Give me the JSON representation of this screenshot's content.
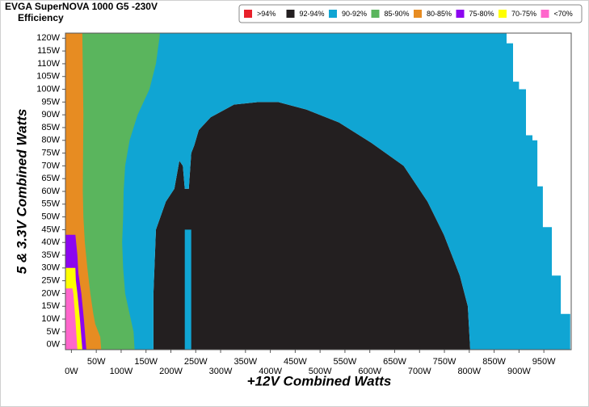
{
  "chart_data": {
    "type": "region-map",
    "title": "EVGA SuperNOVA 1000 G5 -230V",
    "subtitle": "Efficiency",
    "x_label": "+12V Combined Watts",
    "y_label": "5 & 3.3V Combined Watts",
    "xlim": [
      -12,
      1005
    ],
    "ylim": [
      -2,
      122
    ],
    "xticks": [
      {
        "value": 0,
        "label": "0W"
      },
      {
        "value": 50,
        "label": "50W"
      },
      {
        "value": 100,
        "label": "100W"
      },
      {
        "value": 150,
        "label": "150W"
      },
      {
        "value": 200,
        "label": "200W"
      },
      {
        "value": 250,
        "label": "250W"
      },
      {
        "value": 300,
        "label": "300W"
      },
      {
        "value": 350,
        "label": "350W"
      },
      {
        "value": 400,
        "label": "400W"
      },
      {
        "value": 450,
        "label": "450W"
      },
      {
        "value": 500,
        "label": "500W"
      },
      {
        "value": 550,
        "label": "550W"
      },
      {
        "value": 600,
        "label": "600W"
      },
      {
        "value": 650,
        "label": "650W"
      },
      {
        "value": 700,
        "label": "700W"
      },
      {
        "value": 750,
        "label": "750W"
      },
      {
        "value": 800,
        "label": "800W"
      },
      {
        "value": 850,
        "label": "850W"
      },
      {
        "value": 900,
        "label": "900W"
      },
      {
        "value": 950,
        "label": "950W"
      }
    ],
    "yticks": [
      {
        "value": 0,
        "label": "0W"
      },
      {
        "value": 5,
        "label": "5W"
      },
      {
        "value": 10,
        "label": "10W"
      },
      {
        "value": 15,
        "label": "15W"
      },
      {
        "value": 20,
        "label": "20W"
      },
      {
        "value": 25,
        "label": "25W"
      },
      {
        "value": 30,
        "label": "30W"
      },
      {
        "value": 35,
        "label": "35W"
      },
      {
        "value": 40,
        "label": "40W"
      },
      {
        "value": 45,
        "label": "45W"
      },
      {
        "value": 50,
        "label": "50W"
      },
      {
        "value": 55,
        "label": "55W"
      },
      {
        "value": 60,
        "label": "60W"
      },
      {
        "value": 65,
        "label": "65W"
      },
      {
        "value": 70,
        "label": "70W"
      },
      {
        "value": 75,
        "label": "75W"
      },
      {
        "value": 80,
        "label": "80W"
      },
      {
        "value": 85,
        "label": "85W"
      },
      {
        "value": 90,
        "label": "90W"
      },
      {
        "value": 95,
        "label": "95W"
      },
      {
        "value": 100,
        "label": "100W"
      },
      {
        "value": 105,
        "label": "105W"
      },
      {
        "value": 110,
        "label": "110W"
      },
      {
        "value": 115,
        "label": "115W"
      },
      {
        "value": 120,
        "label": "120W"
      }
    ],
    "legend": "top-right",
    "series": [
      {
        "name": ">94%",
        "color": "#e8202a",
        "x": [],
        "y": []
      },
      {
        "name": "92-94%",
        "color": "#231f20",
        "x": [
          165,
          802,
          797,
          781,
          749,
          716,
          668,
          603,
          538,
          473,
          416,
          376,
          327,
          280,
          256,
          247,
          241,
          236,
          228,
          224,
          217,
          207,
          190,
          170,
          165
        ],
        "y": [
          -2,
          -2,
          15,
          27,
          43,
          56,
          70,
          79,
          87,
          92,
          95,
          95,
          94,
          89,
          84,
          78,
          75,
          61,
          61,
          70,
          72,
          61,
          56,
          45,
          20
        ]
      },
      {
        "name": "90-92%",
        "color": "#10a5d3",
        "x": [
          -12,
          165,
          165,
          170,
          190,
          207,
          217,
          224,
          228,
          236,
          241,
          247,
          256,
          280,
          327,
          376,
          416,
          473,
          538,
          603,
          668,
          716,
          749,
          781,
          797,
          802,
          1003,
          1003,
          984,
          984,
          966,
          966,
          948,
          948,
          937,
          937,
          927,
          927,
          914,
          914,
          900,
          900,
          888,
          888,
          875,
          875,
          -12,
          null,
          228,
          241,
          241,
          228
        ],
        "y": [
          -2,
          -2,
          20,
          45,
          56,
          61,
          72,
          70,
          61,
          61,
          75,
          78,
          84,
          89,
          94,
          95,
          95,
          92,
          87,
          79,
          70,
          56,
          43,
          27,
          15,
          -2,
          -2,
          12,
          12,
          27,
          27,
          46,
          46,
          62,
          62,
          80,
          80,
          82,
          82,
          100,
          100,
          103,
          103,
          118,
          118,
          122,
          122,
          null,
          -2,
          -2,
          45,
          45
        ]
      },
      {
        "name": "85-90%",
        "color": "#5ab55d",
        "x": [
          -12,
          127,
          125,
          117,
          108,
          104,
          102,
          104,
          105,
          108,
          117,
          133,
          157,
          170,
          177,
          178,
          -12
        ],
        "y": [
          -2,
          -2,
          5,
          12,
          20,
          30,
          40,
          50,
          60,
          70,
          80,
          90,
          100,
          110,
          120,
          122,
          122
        ]
      },
      {
        "name": "80-85%",
        "color": "#e78c22",
        "x": [
          -12,
          60,
          58,
          48,
          44,
          38,
          32,
          27,
          24,
          23,
          24,
          22,
          -12
        ],
        "y": [
          -2,
          -2,
          3,
          8,
          12,
          20,
          30,
          40,
          50,
          60,
          90,
          122,
          122
        ]
      },
      {
        "name": "75-80%",
        "color": "#8c05f0",
        "x": [
          -12,
          30,
          25,
          20,
          14,
          12,
          8,
          -12
        ],
        "y": [
          -2,
          -2,
          10,
          20,
          28,
          35,
          43,
          43
        ]
      },
      {
        "name": "70-75%",
        "color": "#ffff00",
        "x": [
          -12,
          22,
          17,
          12,
          9,
          8,
          -12
        ],
        "y": [
          -2,
          -2,
          10,
          20,
          25,
          30,
          30
        ]
      },
      {
        "name": "<70%",
        "color": "#ff66cc",
        "x": [
          -12,
          12,
          8,
          4,
          2,
          -12
        ],
        "y": [
          -2,
          -2,
          10,
          20,
          22,
          22
        ]
      }
    ]
  }
}
